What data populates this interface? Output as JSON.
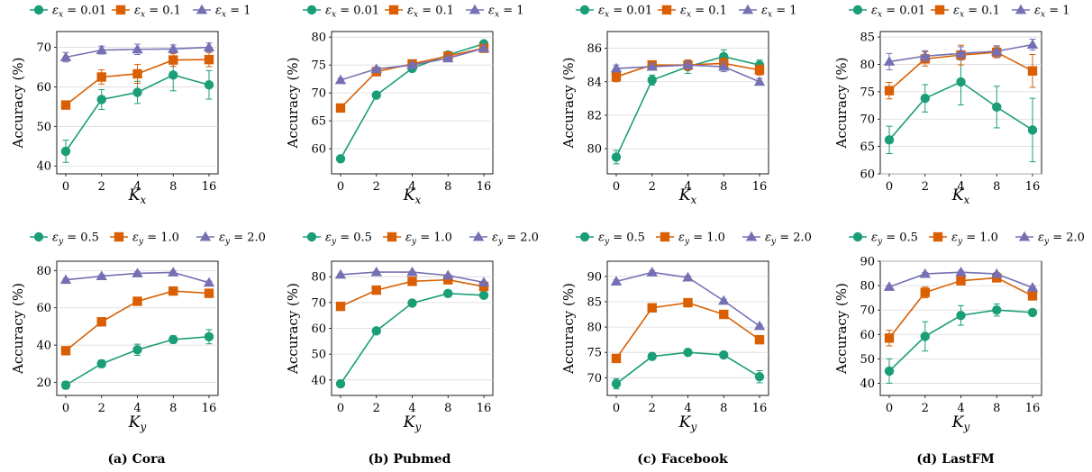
{
  "colors": {
    "s1": "#1b9e77",
    "s2": "#d95f02",
    "s3": "#7570b3"
  },
  "captions": [
    "(a) Cora",
    "(b) Pubmed",
    "(c) Facebook",
    "(d) LastFM"
  ],
  "chart_data": [
    {
      "type": "line",
      "panel": "Cora",
      "ylabel": "Accuracy (%)",
      "xlabel_var": "K",
      "xlabel_sub": "x",
      "x": [
        "0",
        "2",
        "4",
        "8",
        "16"
      ],
      "ylim": [
        38,
        74
      ],
      "yticks": [
        40,
        50,
        60,
        70
      ],
      "legend_var": "ε",
      "legend_sub": "x",
      "series": [
        {
          "name": "0.01",
          "marker": "circle",
          "values": [
            43.7,
            56.8,
            58.6,
            63.0,
            60.5
          ],
          "err": [
            2.8,
            2.5,
            2.8,
            4.0,
            3.6
          ]
        },
        {
          "name": "0.1",
          "marker": "square",
          "values": [
            55.4,
            62.5,
            63.3,
            66.8,
            66.9
          ],
          "err": [
            0.8,
            1.8,
            2.4,
            1.6,
            1.8
          ]
        },
        {
          "name": "1",
          "marker": "triangle",
          "values": [
            67.5,
            69.3,
            69.5,
            69.6,
            70.0
          ],
          "err": [
            1.2,
            1.0,
            1.3,
            1.0,
            1.1
          ]
        }
      ]
    },
    {
      "type": "line",
      "panel": "Pubmed",
      "ylabel": "Accuracy (%)",
      "xlabel_var": "K",
      "xlabel_sub": "x",
      "x": [
        "0",
        "2",
        "4",
        "8",
        "16"
      ],
      "ylim": [
        55.5,
        81
      ],
      "yticks": [
        60,
        65,
        70,
        75,
        80
      ],
      "legend_var": "ε",
      "legend_sub": "x",
      "series": [
        {
          "name": "0.01",
          "marker": "circle",
          "values": [
            58.2,
            69.6,
            74.4,
            76.8,
            78.8
          ],
          "err": [
            0.5,
            0.4,
            0.4,
            0.4,
            0.4
          ]
        },
        {
          "name": "0.1",
          "marker": "square",
          "values": [
            67.3,
            73.8,
            75.2,
            76.6,
            78.0
          ],
          "err": [
            0.4,
            0.4,
            0.3,
            0.4,
            0.4
          ]
        },
        {
          "name": "1",
          "marker": "triangle",
          "values": [
            72.3,
            74.3,
            75.0,
            76.2,
            78.0
          ],
          "err": [
            0.3,
            0.3,
            0.3,
            0.3,
            0.3
          ]
        }
      ]
    },
    {
      "type": "line",
      "panel": "Facebook",
      "ylabel": "Accuracy (%)",
      "xlabel_var": "K",
      "xlabel_sub": "x",
      "x": [
        "0",
        "2",
        "4",
        "8",
        "16"
      ],
      "ylim": [
        78.5,
        87
      ],
      "yticks": [
        80,
        82,
        84,
        86
      ],
      "legend_var": "ε",
      "legend_sub": "x",
      "series": [
        {
          "name": "0.01",
          "marker": "circle",
          "values": [
            79.5,
            84.1,
            84.9,
            85.5,
            85.0
          ],
          "err": [
            0.4,
            0.3,
            0.4,
            0.4,
            0.3
          ]
        },
        {
          "name": "0.1",
          "marker": "square",
          "values": [
            84.3,
            85.0,
            85.0,
            85.1,
            84.7
          ],
          "err": [
            0.3,
            0.2,
            0.3,
            0.3,
            0.3
          ]
        },
        {
          "name": "1",
          "marker": "triangle",
          "values": [
            84.8,
            84.9,
            85.0,
            84.9,
            84.0
          ],
          "err": [
            0.2,
            0.2,
            0.2,
            0.3,
            0.2
          ]
        }
      ]
    },
    {
      "type": "line",
      "panel": "LastFM",
      "ylabel": "Accuracy (%)",
      "xlabel_var": "K",
      "xlabel_sub": "x",
      "x": [
        "0",
        "2",
        "4",
        "8",
        "16"
      ],
      "ylim": [
        60,
        86
      ],
      "yticks": [
        60,
        65,
        70,
        75,
        80,
        85
      ],
      "legend_var": "ε",
      "legend_sub": "x",
      "series": [
        {
          "name": "0.01",
          "marker": "circle",
          "values": [
            66.2,
            73.8,
            76.8,
            72.2,
            68.0
          ],
          "err": [
            2.5,
            2.5,
            4.2,
            3.8,
            5.8
          ]
        },
        {
          "name": "0.1",
          "marker": "square",
          "values": [
            75.2,
            81.0,
            81.7,
            82.2,
            78.8
          ],
          "err": [
            1.5,
            1.3,
            1.8,
            1.0,
            3.0
          ]
        },
        {
          "name": "1",
          "marker": "triangle",
          "values": [
            80.5,
            81.5,
            82.0,
            82.4,
            83.6
          ],
          "err": [
            1.5,
            1.0,
            1.2,
            1.0,
            1.0
          ]
        }
      ]
    },
    {
      "type": "line",
      "panel": "Cora",
      "ylabel": "Accuracy (%)",
      "xlabel_var": "K",
      "xlabel_sub": "y",
      "x": [
        "0",
        "2",
        "4",
        "8",
        "16"
      ],
      "ylim": [
        13,
        85
      ],
      "yticks": [
        20,
        40,
        60,
        80
      ],
      "legend_var": "ε",
      "legend_sub": "y",
      "series": [
        {
          "name": "0.5",
          "marker": "circle",
          "values": [
            18.5,
            30.0,
            37.5,
            43.0,
            44.5
          ],
          "err": [
            2.0,
            2.0,
            3.0,
            2.0,
            3.8
          ]
        },
        {
          "name": "1.0",
          "marker": "square",
          "values": [
            37.0,
            52.5,
            63.5,
            69.0,
            67.8
          ],
          "err": [
            1.0,
            1.5,
            1.0,
            1.0,
            1.0
          ]
        },
        {
          "name": "2.0",
          "marker": "triangle",
          "values": [
            75.0,
            77.0,
            78.5,
            79.0,
            73.5
          ],
          "err": [
            0.8,
            0.8,
            0.8,
            0.8,
            0.8
          ]
        }
      ]
    },
    {
      "type": "line",
      "panel": "Pubmed",
      "ylabel": "Accuracy (%)",
      "xlabel_var": "K",
      "xlabel_sub": "y",
      "x": [
        "0",
        "2",
        "4",
        "8",
        "16"
      ],
      "ylim": [
        34,
        86
      ],
      "yticks": [
        40,
        50,
        60,
        70,
        80
      ],
      "legend_var": "ε",
      "legend_sub": "y",
      "series": [
        {
          "name": "0.5",
          "marker": "circle",
          "values": [
            38.5,
            59.0,
            69.8,
            73.5,
            72.8
          ],
          "err": [
            0.5,
            0.5,
            0.5,
            0.5,
            0.5
          ]
        },
        {
          "name": "1.0",
          "marker": "square",
          "values": [
            68.5,
            74.8,
            78.2,
            78.8,
            76.2
          ],
          "err": [
            0.4,
            0.4,
            0.4,
            0.4,
            0.4
          ]
        },
        {
          "name": "2.0",
          "marker": "triangle",
          "values": [
            80.8,
            81.8,
            81.8,
            80.5,
            77.8
          ],
          "err": [
            0.3,
            0.3,
            0.3,
            0.3,
            0.3
          ]
        }
      ]
    },
    {
      "type": "line",
      "panel": "Facebook",
      "ylabel": "Accuracy (%)",
      "xlabel_var": "K",
      "xlabel_sub": "y",
      "x": [
        "0",
        "2",
        "4",
        "8",
        "16"
      ],
      "ylim": [
        66.5,
        93
      ],
      "yticks": [
        70,
        75,
        80,
        85,
        90
      ],
      "legend_var": "ε",
      "legend_sub": "y",
      "series": [
        {
          "name": "0.5",
          "marker": "circle",
          "values": [
            68.8,
            74.2,
            75.0,
            74.5,
            70.2
          ],
          "err": [
            1.0,
            0.4,
            0.4,
            0.4,
            1.2
          ]
        },
        {
          "name": "1.0",
          "marker": "square",
          "values": [
            73.8,
            83.8,
            84.8,
            82.5,
            77.5
          ],
          "err": [
            0.4,
            0.4,
            0.4,
            0.4,
            0.4
          ]
        },
        {
          "name": "2.0",
          "marker": "triangle",
          "values": [
            89.0,
            90.8,
            89.8,
            85.2,
            80.2
          ],
          "err": [
            0.3,
            0.3,
            0.3,
            0.3,
            0.3
          ]
        }
      ]
    },
    {
      "type": "line",
      "panel": "LastFM",
      "ylabel": "Accuracy (%)",
      "xlabel_var": "K",
      "xlabel_sub": "y",
      "x": [
        "0",
        "2",
        "4",
        "8",
        "16"
      ],
      "ylim": [
        35,
        90
      ],
      "yticks": [
        40,
        50,
        60,
        70,
        80,
        90
      ],
      "legend_var": "ε",
      "legend_sub": "y",
      "series": [
        {
          "name": "0.5",
          "marker": "circle",
          "values": [
            45.0,
            59.2,
            67.8,
            70.0,
            69.0
          ],
          "err": [
            5.0,
            6.0,
            4.0,
            2.5,
            1.2
          ]
        },
        {
          "name": "1.0",
          "marker": "square",
          "values": [
            58.5,
            77.2,
            82.0,
            83.2,
            75.8
          ],
          "err": [
            3.2,
            2.2,
            1.0,
            1.0,
            1.2
          ]
        },
        {
          "name": "2.0",
          "marker": "triangle",
          "values": [
            79.5,
            84.8,
            85.5,
            84.8,
            79.2
          ],
          "err": [
            0.6,
            0.6,
            0.6,
            0.6,
            0.6
          ]
        }
      ]
    }
  ]
}
